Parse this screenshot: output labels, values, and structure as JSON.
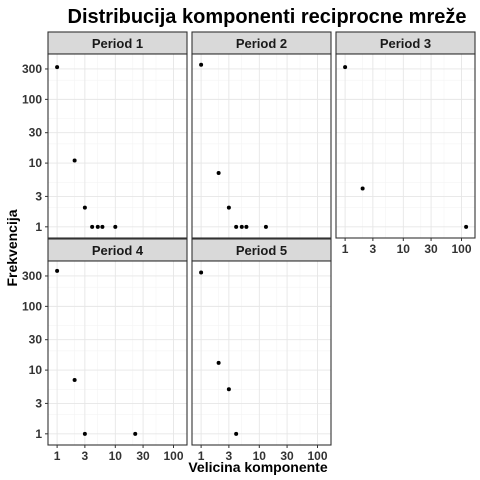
{
  "chart_data": {
    "type": "scatter",
    "title": "Distribucija komponenti reciprocne mreže",
    "xlabel": "Velicina komponente",
    "ylabel": "Frekvencija",
    "x_scale": "log",
    "y_scale": "log",
    "xlim": [
      0.85,
      140
    ],
    "ylim": [
      0.8,
      430
    ],
    "x_ticks": [
      1,
      3,
      10,
      30,
      100
    ],
    "x_tick_labels": [
      "1",
      "3",
      "10",
      "30",
      "100"
    ],
    "y_ticks": [
      1,
      3,
      10,
      30,
      100,
      300
    ],
    "y_tick_labels": [
      "1",
      "3",
      "10",
      "30",
      "100",
      "300"
    ],
    "grid": true,
    "facets": [
      {
        "label": "Period 1",
        "points": [
          {
            "x": 1,
            "y": 320
          },
          {
            "x": 2,
            "y": 11
          },
          {
            "x": 3,
            "y": 2
          },
          {
            "x": 4,
            "y": 1
          },
          {
            "x": 5,
            "y": 1
          },
          {
            "x": 6,
            "y": 1
          },
          {
            "x": 10,
            "y": 1
          }
        ]
      },
      {
        "label": "Period 2",
        "points": [
          {
            "x": 1,
            "y": 350
          },
          {
            "x": 2,
            "y": 7
          },
          {
            "x": 3,
            "y": 2
          },
          {
            "x": 4,
            "y": 1
          },
          {
            "x": 5,
            "y": 1
          },
          {
            "x": 6,
            "y": 1
          },
          {
            "x": 13,
            "y": 1
          }
        ]
      },
      {
        "label": "Period 3",
        "points": [
          {
            "x": 1,
            "y": 320
          },
          {
            "x": 2,
            "y": 4
          },
          {
            "x": 120,
            "y": 1
          }
        ]
      },
      {
        "label": "Period 4",
        "points": [
          {
            "x": 1,
            "y": 360
          },
          {
            "x": 2,
            "y": 7
          },
          {
            "x": 3,
            "y": 1
          },
          {
            "x": 22,
            "y": 1
          }
        ]
      },
      {
        "label": "Period 5",
        "points": [
          {
            "x": 1,
            "y": 340
          },
          {
            "x": 2,
            "y": 13
          },
          {
            "x": 3,
            "y": 5
          },
          {
            "x": 4,
            "y": 1
          }
        ]
      }
    ]
  }
}
